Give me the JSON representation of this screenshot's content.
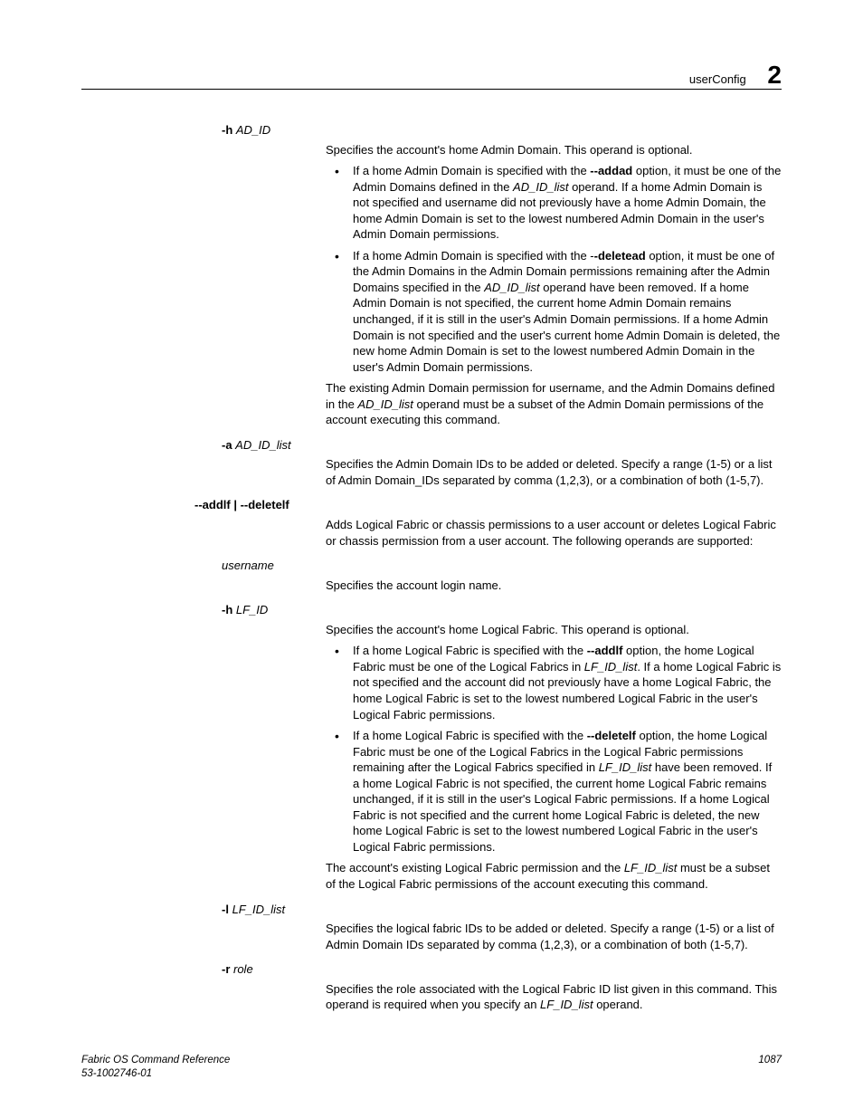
{
  "header": {
    "title": "userConfig",
    "chapter": "2"
  },
  "footer": {
    "left_line1": "Fabric OS Command Reference",
    "left_line2": "53-1002746-01",
    "page": "1087"
  },
  "items": [
    {
      "term_bold": "-h ",
      "term_italic": "AD_ID",
      "def_intro": "Specifies the account's home Admin Domain. This operand is optional.",
      "bullets": [
        {
          "pre": "If a home Admin Domain is specified with the ",
          "bold": "--addad",
          "mid": " option, it must be one of the Admin Domains defined in the ",
          "ital": "AD_ID_list",
          "post": " operand. If a home Admin Domain is not specified and username did not previously have a home Admin Domain, the home Admin Domain is set to the lowest numbered Admin Domain in the user's Admin Domain permissions."
        },
        {
          "pre": "If a home Admin Domain is specified with the -",
          "bold": "-deletead",
          "mid": " option, it must be one of the Admin Domains in the Admin Domain permissions remaining after the Admin Domains specified in the ",
          "ital": "AD_ID_list ",
          "post": " operand have been removed. If a home Admin Domain is not specified, the current home Admin Domain remains unchanged, if it is still in the user's Admin Domain permissions. If a home Admin Domain is not specified and the user's current home Admin Domain is deleted, the new home Admin Domain is set to the lowest numbered Admin Domain in the user's Admin Domain permissions."
        }
      ],
      "after1": "The existing Admin Domain permission for username, and the Admin Domains defined in the ",
      "after_ital": "AD_ID_list",
      "after2": " operand must be a subset of the Admin Domain permissions of the account executing this command."
    },
    {
      "term_bold": "-a ",
      "term_italic": "AD_ID_list",
      "def_intro": "Specifies the Admin Domain IDs to be added or deleted. Specify a range (1-5) or a list of Admin Domain_IDs separated by comma (1,2,3), or a combination of both (1-5,7)."
    },
    {
      "term_bold_full": "--addlf | --deletelf",
      "term_left_indent": true,
      "def_intro": "Adds Logical Fabric or chassis permissions to a user account or deletes Logical Fabric or chassis permission from a user account. The following operands are supported:"
    },
    {
      "term_italic_only": "username",
      "def_intro": "Specifies the account login name."
    },
    {
      "term_bold": "-h ",
      "term_italic": "LF_ID",
      "def_intro": "Specifies the account's home Logical Fabric. This operand is optional.",
      "bullets": [
        {
          "pre": "If a home Logical Fabric is specified with the ",
          "bold": "--addlf",
          "mid": " option, the home Logical Fabric must be one of the Logical Fabrics in ",
          "ital": "LF_ID_list",
          "post": ". If a home Logical Fabric is not specified and the account did not previously have a home Logical Fabric, the home Logical Fabric is set to the lowest numbered Logical Fabric in the user's Logical Fabric permissions."
        },
        {
          "pre": "If a home Logical Fabric is specified with the ",
          "bold": "--deletelf",
          "mid": " option, the home Logical Fabric must be one of the Logical Fabrics in the Logical Fabric permissions remaining after the Logical Fabrics specified in ",
          "ital": "LF_ID_list",
          "post": " have been removed. If a home Logical Fabric is not specified, the current home Logical Fabric remains unchanged, if it is still in the user's Logical Fabric permissions. If a home Logical Fabric is not specified and the current home Logical Fabric is deleted, the new home Logical Fabric is set to the lowest numbered Logical Fabric in the user's Logical Fabric permissions."
        }
      ],
      "after1": "The account's existing Logical Fabric permission and the ",
      "after_ital": "LF_ID_list",
      "after2": " must be a subset of the Logical Fabric permissions of the account executing this command."
    },
    {
      "term_bold": "-l ",
      "term_italic": "LF_ID_list",
      "def_intro": "Specifies the logical fabric IDs to be added or deleted. Specify a range (1-5) or a list of Admin Domain IDs separated by comma (1,2,3), or a combination of both (1-5,7)."
    },
    {
      "term_bold": "-r ",
      "term_italic": "role",
      "def_intro_pre": "Specifies the role associated with the Logical Fabric ID list given in this command. This operand is required when you specify an ",
      "def_intro_ital": "LF_ID_list",
      "def_intro_post": " operand."
    }
  ]
}
